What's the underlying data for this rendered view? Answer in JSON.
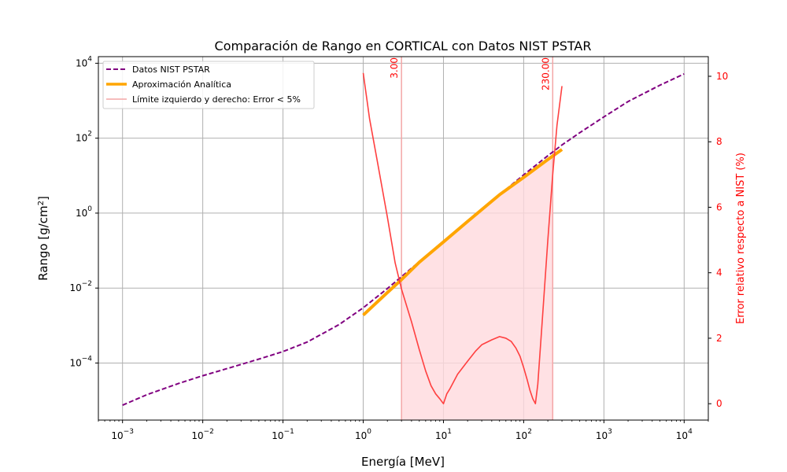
{
  "chart_data": {
    "type": "line",
    "title": "Comparación de Rango en CORTICAL con Datos NIST PSTAR",
    "xlabel": "Energía [MeV]",
    "ylabel_prefix": "Rango [g/cm",
    "ylabel_sup": "2",
    "ylabel_suffix": "]",
    "ylabel_right": "Error relativo respecto a NIST (%)",
    "xscale": "log",
    "yscale": "log",
    "xlim": [
      0.0005,
      20000
    ],
    "ylim": [
      3e-06,
      15000
    ],
    "ylim_right": [
      -0.5,
      10.6
    ],
    "grid": true,
    "legend_position": "top-left",
    "x_ticks": [
      {
        "base": "10",
        "exp": "−3",
        "value": 0.001
      },
      {
        "base": "10",
        "exp": "−2",
        "value": 0.01
      },
      {
        "base": "10",
        "exp": "−1",
        "value": 0.1
      },
      {
        "base": "10",
        "exp": "0",
        "value": 1
      },
      {
        "base": "10",
        "exp": "1",
        "value": 10
      },
      {
        "base": "10",
        "exp": "2",
        "value": 100
      },
      {
        "base": "10",
        "exp": "3",
        "value": 1000
      },
      {
        "base": "10",
        "exp": "4",
        "value": 10000
      }
    ],
    "y_ticks": [
      {
        "base": "10",
        "exp": "−4",
        "value": 0.0001
      },
      {
        "base": "10",
        "exp": "−2",
        "value": 0.01
      },
      {
        "base": "10",
        "exp": "0",
        "value": 1
      },
      {
        "base": "10",
        "exp": "2",
        "value": 100
      },
      {
        "base": "10",
        "exp": "4",
        "value": 10000
      }
    ],
    "y_right_ticks": [
      {
        "label": "0",
        "value": 0
      },
      {
        "label": "2",
        "value": 2
      },
      {
        "label": "4",
        "value": 4
      },
      {
        "label": "6",
        "value": 6
      },
      {
        "label": "8",
        "value": 8
      },
      {
        "label": "10",
        "value": 10
      }
    ],
    "colors": {
      "nist": "#800080",
      "analytic": "#ffa500",
      "error": "#ff4040",
      "limit": "#f4a6a6",
      "fill": "#ffdadd"
    },
    "series": [
      {
        "name": "Datos NIST PSTAR",
        "style": "dashed",
        "axis": "left",
        "x": [
          0.001,
          0.002,
          0.005,
          0.01,
          0.02,
          0.05,
          0.1,
          0.2,
          0.5,
          1,
          2,
          5,
          10,
          20,
          50,
          100,
          200,
          300,
          500,
          1000,
          2000,
          5000,
          10000
        ],
        "y": [
          7.5e-06,
          1.42e-05,
          2.85e-05,
          4.58e-05,
          7.08e-05,
          0.000127,
          0.000202,
          0.000362,
          0.00106,
          0.00298,
          0.0097,
          0.0505,
          0.175,
          0.6,
          3.1,
          10.5,
          34.0,
          66.0,
          140.0,
          370.0,
          950.0,
          2600.0,
          5200.0
        ]
      },
      {
        "name": "Aproximación Analítica",
        "style": "solid",
        "axis": "left",
        "x": [
          1,
          2,
          3,
          5,
          10,
          20,
          50,
          100,
          200,
          300
        ],
        "y": [
          0.0019,
          0.0076,
          0.0168,
          0.049,
          0.17,
          0.6,
          3.1,
          9.0,
          27.0,
          50.0
        ]
      },
      {
        "name": "Error relativo",
        "style": "solid",
        "axis": "right",
        "x": [
          1,
          1.2,
          1.5,
          2,
          2.5,
          3,
          4,
          5,
          6,
          7,
          8,
          9,
          10,
          11,
          12,
          15,
          20,
          25,
          30,
          40,
          50,
          60,
          70,
          80,
          90,
          100,
          110,
          120,
          130,
          140,
          150,
          170,
          200,
          230,
          260,
          300
        ],
        "y": [
          10.1,
          8.7,
          7.4,
          5.7,
          4.3,
          3.5,
          2.5,
          1.65,
          1.0,
          0.55,
          0.3,
          0.15,
          0.0,
          0.3,
          0.45,
          0.9,
          1.3,
          1.6,
          1.8,
          1.95,
          2.05,
          2.0,
          1.9,
          1.7,
          1.45,
          1.1,
          0.75,
          0.4,
          0.15,
          0.0,
          0.6,
          2.5,
          5.0,
          7.0,
          8.5,
          9.7
        ]
      },
      {
        "name": "Límite izquierdo y derecho: Error < 5%",
        "style": "vline",
        "axis": "right",
        "x": [
          3.0,
          230.0
        ]
      }
    ],
    "annotations": [
      {
        "text": "3.00",
        "x": 3.0
      },
      {
        "text": "230.00",
        "x": 230.0
      }
    ]
  }
}
